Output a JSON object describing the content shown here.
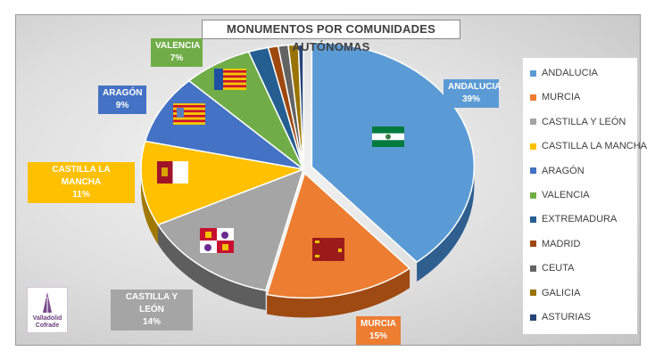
{
  "chart_data": {
    "type": "pie",
    "title": "MONUMENTOS POR COMUNIDADES AUTÓNOMAS",
    "legend_position": "right",
    "slices": [
      {
        "name": "ANDALUCIA",
        "value": 39,
        "label": "39%",
        "color": "#5b9bd5",
        "dark": "#2e5f8f"
      },
      {
        "name": "MURCIA",
        "value": 15,
        "label": "15%",
        "color": "#ed7d31",
        "dark": "#9e4a12"
      },
      {
        "name": "CASTILLA Y LEÓN",
        "value": 14,
        "label": "14%",
        "color": "#a5a5a5",
        "dark": "#5e5e5e"
      },
      {
        "name": "CASTILLA LA MANCHA",
        "value": 11,
        "label": "11%",
        "color": "#ffc000",
        "dark": "#a07800"
      },
      {
        "name": "ARAGÓN",
        "value": 9,
        "label": "9%",
        "color": "#4472c4",
        "dark": "#24447e"
      },
      {
        "name": "VALENCIA",
        "value": 7,
        "label": "7%",
        "color": "#70ad47",
        "dark": "#3f6a24"
      },
      {
        "name": "EXTREMADURA",
        "value": 2,
        "label": "",
        "color": "#255e91",
        "dark": "#153a5c"
      },
      {
        "name": "MADRID",
        "value": 1,
        "label": "",
        "color": "#9e480e",
        "dark": "#5e2a08"
      },
      {
        "name": "CEUTA",
        "value": 1,
        "label": "",
        "color": "#636363",
        "dark": "#3a3a3a"
      },
      {
        "name": "GALICIA",
        "value": 1,
        "label": "",
        "color": "#997300",
        "dark": "#5e4600"
      },
      {
        "name": "ASTURIAS",
        "value": 0.5,
        "label": "",
        "color": "#264478",
        "dark": "#15284a"
      }
    ]
  },
  "logo": {
    "line1": "Valladolid",
    "line2": "Cofrade"
  }
}
